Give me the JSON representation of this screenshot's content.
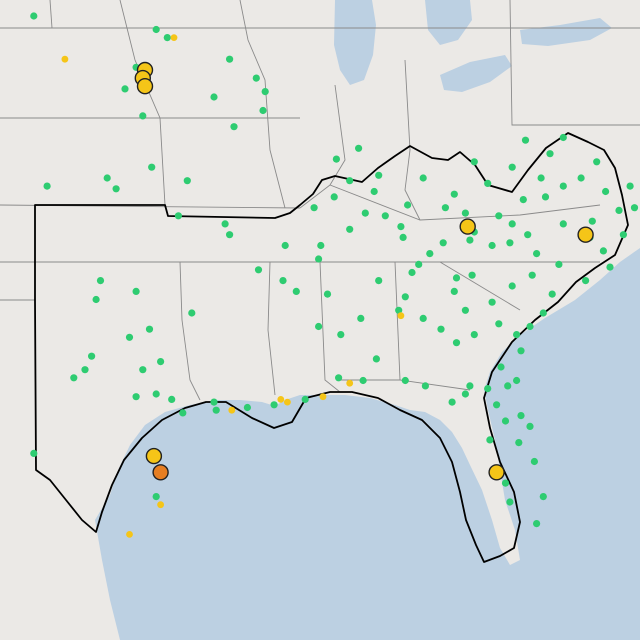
{
  "map": {
    "colors": {
      "land": "#ebe9e6",
      "water": "#bcd0e2",
      "state_line": "#8a8a8a",
      "region_outline": "#000000",
      "marker_green": "#2ecc71",
      "marker_yellow": "#f5c518",
      "marker_orange": "#e67e22",
      "marker_stroke": "#222222"
    },
    "markers": {
      "green": [
        [
          44,
          -103.1
        ],
        [
          43.5,
          -97.6
        ],
        [
          43.2,
          -97.1
        ],
        [
          42.1,
          -98.5
        ],
        [
          42.4,
          -94.3
        ],
        [
          41.7,
          -93.1
        ],
        [
          41.3,
          -99
        ],
        [
          41.2,
          -92.7
        ],
        [
          41,
          -95
        ],
        [
          40.3,
          -98.2
        ],
        [
          40.5,
          -92.8
        ],
        [
          39.9,
          -94.1
        ],
        [
          37.7,
          -102.5
        ],
        [
          38,
          -99.8
        ],
        [
          37.6,
          -99.4
        ],
        [
          38.4,
          -97.8
        ],
        [
          37.9,
          -96.2
        ],
        [
          36.6,
          -96.6
        ],
        [
          36.3,
          -94.5
        ],
        [
          35.9,
          -94.3
        ],
        [
          35.5,
          -90.2
        ],
        [
          34.6,
          -93
        ],
        [
          34.2,
          -91.9
        ],
        [
          33.8,
          -91.3
        ],
        [
          33.7,
          -89.9
        ],
        [
          32.5,
          -90.3
        ],
        [
          32.8,
          -88.4
        ],
        [
          32.2,
          -89.3
        ],
        [
          31.3,
          -87.7
        ],
        [
          30.5,
          -86.4
        ],
        [
          30.3,
          -85.5
        ],
        [
          30.5,
          -88.3
        ],
        [
          30.6,
          -89.4
        ],
        [
          29.8,
          -90.9
        ],
        [
          29.6,
          -92.3
        ],
        [
          29.5,
          -93.5
        ],
        [
          29.7,
          -95
        ],
        [
          29.4,
          -94.9
        ],
        [
          29.3,
          -96.4
        ],
        [
          30,
          -97.6
        ],
        [
          29.8,
          -96.9
        ],
        [
          30.9,
          -98.2
        ],
        [
          31.2,
          -97.4
        ],
        [
          32.4,
          -97.9
        ],
        [
          32.1,
          -98.8
        ],
        [
          33.8,
          -98.5
        ],
        [
          33.5,
          -100.3
        ],
        [
          34.2,
          -100.1
        ],
        [
          33,
          -96
        ],
        [
          31.4,
          -100.5
        ],
        [
          30.9,
          -100.8
        ],
        [
          30.6,
          -101.3
        ],
        [
          27.8,
          -103.1
        ],
        [
          26.2,
          -97.6
        ],
        [
          29.9,
          -98.5
        ],
        [
          34.2,
          -87.6
        ],
        [
          34.5,
          -86.1
        ],
        [
          34.8,
          -85.8
        ],
        [
          35.8,
          -86.5
        ],
        [
          35.2,
          -85.3
        ],
        [
          35.6,
          -84.7
        ],
        [
          36.2,
          -86.6
        ],
        [
          36.6,
          -87.3
        ],
        [
          36.7,
          -88.2
        ],
        [
          36.1,
          -88.9
        ],
        [
          35,
          -90.3
        ],
        [
          35.5,
          -91.8
        ],
        [
          33.6,
          -86.4
        ],
        [
          33.1,
          -86.7
        ],
        [
          32.8,
          -85.6
        ],
        [
          32.4,
          -84.8
        ],
        [
          31.9,
          -84.1
        ],
        [
          32.2,
          -83.3
        ],
        [
          33.1,
          -83.7
        ],
        [
          33.8,
          -84.2
        ],
        [
          34.3,
          -84.1
        ],
        [
          34.4,
          -83.4
        ],
        [
          33.4,
          -82.5
        ],
        [
          32.6,
          -82.2
        ],
        [
          32.2,
          -81.4
        ],
        [
          31.6,
          -81.2
        ],
        [
          31,
          -82.1
        ],
        [
          30.5,
          -81.4
        ],
        [
          30.3,
          -83.5
        ],
        [
          30.2,
          -82.7
        ],
        [
          29.6,
          -82.3
        ],
        [
          29.2,
          -81.2
        ],
        [
          29,
          -81.9
        ],
        [
          28.8,
          -80.8
        ],
        [
          28.3,
          -82.6
        ],
        [
          28.2,
          -81.3
        ],
        [
          27.5,
          -80.6
        ],
        [
          26.7,
          -81.9
        ],
        [
          26.2,
          -80.2
        ],
        [
          26,
          -81.7
        ],
        [
          25.2,
          -80.5
        ],
        [
          30.3,
          -81.8
        ],
        [
          30,
          -83.7
        ],
        [
          29.7,
          -84.3
        ],
        [
          35.5,
          -82.5
        ],
        [
          36,
          -83.3
        ],
        [
          36.6,
          -82.2
        ],
        [
          36.3,
          -81.6
        ],
        [
          35.9,
          -80.9
        ],
        [
          35.6,
          -81.7
        ],
        [
          35.2,
          -80.5
        ],
        [
          34.8,
          -79.5
        ],
        [
          34.4,
          -80.7
        ],
        [
          34,
          -81.6
        ],
        [
          33.7,
          -79.8
        ],
        [
          33,
          -80.2
        ],
        [
          32.5,
          -80.8
        ],
        [
          34.2,
          -78.3
        ],
        [
          34.7,
          -77.2
        ],
        [
          35.3,
          -77.5
        ],
        [
          35.9,
          -76.6
        ],
        [
          35.8,
          -78.1
        ],
        [
          36.3,
          -79.3
        ],
        [
          36.4,
          -78
        ],
        [
          36.9,
          -76.1
        ],
        [
          37.5,
          -77.4
        ],
        [
          37.7,
          -79.3
        ],
        [
          38,
          -78.5
        ],
        [
          38.6,
          -77.8
        ],
        [
          38.9,
          -79.9
        ],
        [
          39.5,
          -79.3
        ],
        [
          37.7,
          -76.3
        ],
        [
          36.8,
          -76.8
        ],
        [
          37.8,
          -82.7
        ],
        [
          37.4,
          -84.2
        ],
        [
          38,
          -85.6
        ],
        [
          38.1,
          -87.6
        ],
        [
          37,
          -86.3
        ],
        [
          36.9,
          -84.6
        ],
        [
          38.6,
          -83.3
        ],
        [
          37.5,
          -87.8
        ],
        [
          38.4,
          -81.6
        ],
        [
          39.4,
          -81
        ],
        [
          38,
          -80.3
        ],
        [
          37.2,
          -81.1
        ],
        [
          36.7,
          -83.7
        ],
        [
          39.1,
          -88.5
        ],
        [
          38.7,
          -89.5
        ],
        [
          37.9,
          -88.9
        ],
        [
          37.3,
          -89.6
        ],
        [
          36.9,
          -90.5
        ],
        [
          35.7,
          -83.5
        ],
        [
          37.3,
          -80.1
        ]
      ],
      "yellow_small": [
        [
          42.4,
          -101.7
        ],
        [
          43.2,
          -96.8
        ],
        [
          29.4,
          -94.2
        ],
        [
          29.9,
          -90.1
        ],
        [
          30.4,
          -88.9
        ],
        [
          29.7,
          -91.7
        ],
        [
          29.8,
          -92
        ],
        [
          32.9,
          -86.6
        ],
        [
          25.9,
          -97.4
        ],
        [
          24.8,
          -98.8
        ]
      ],
      "yellow_large": [
        [
          42,
          -98.1
        ],
        [
          41.7,
          -98.2
        ],
        [
          41.4,
          -98.1
        ],
        [
          36.2,
          -83.6
        ],
        [
          35.9,
          -78.3
        ],
        [
          27.1,
          -82.3
        ],
        [
          27.7,
          -97.7
        ]
      ],
      "orange_large": [
        [
          27.1,
          -97.4
        ]
      ]
    }
  }
}
